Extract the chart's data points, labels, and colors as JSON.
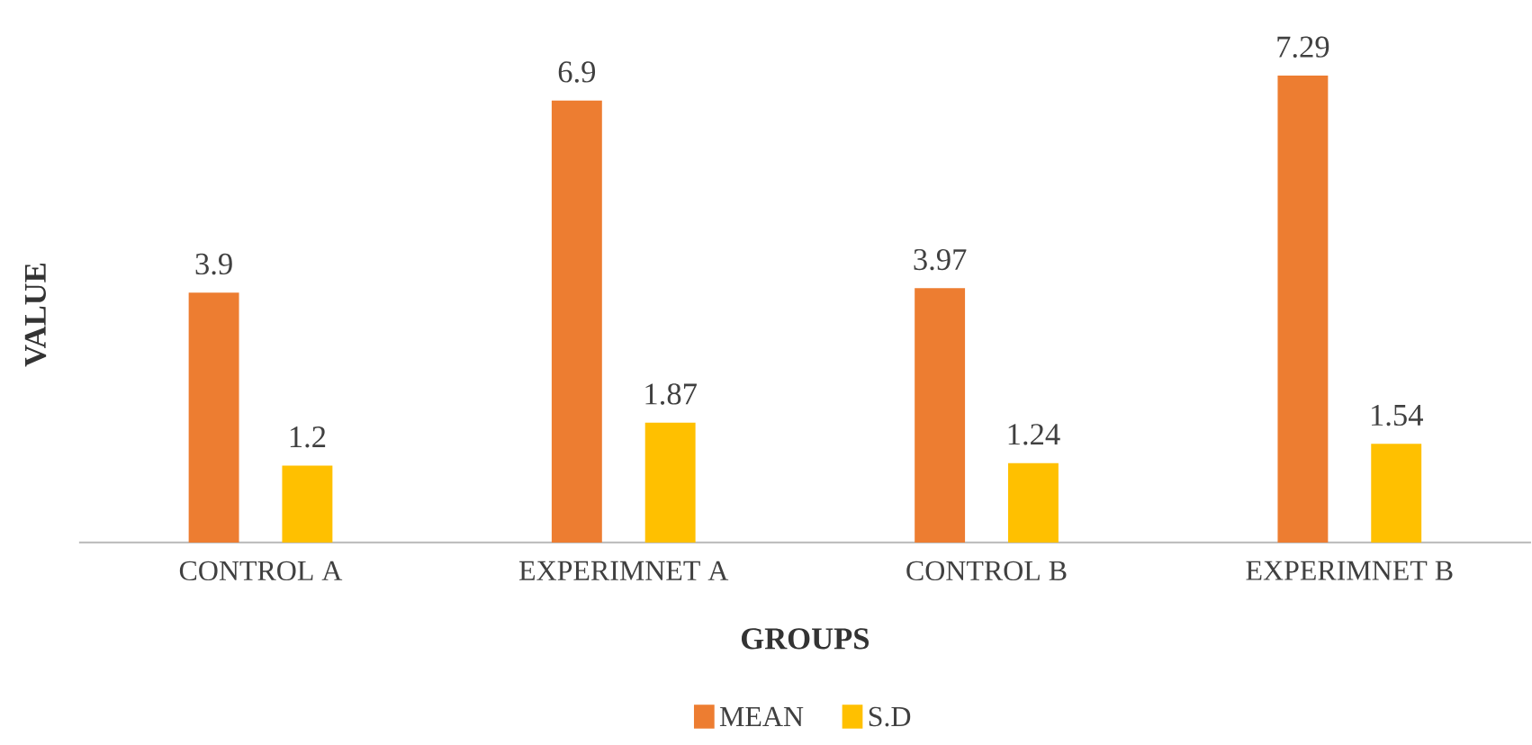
{
  "chart_data": {
    "type": "bar",
    "xlabel": "GROUPS",
    "ylabel": "VALUE",
    "categories": [
      "CONTROL A",
      "EXPERIMNET A",
      "CONTROL B",
      "EXPERIMNET B"
    ],
    "series": [
      {
        "name": "MEAN",
        "color": "#ed7d31",
        "values": [
          3.9,
          6.9,
          3.97,
          7.29
        ]
      },
      {
        "name": "S.D",
        "color": "#ffc000",
        "values": [
          1.2,
          1.87,
          1.24,
          1.54
        ]
      }
    ],
    "data_labels": true,
    "grid": false,
    "legend": "bottom"
  }
}
